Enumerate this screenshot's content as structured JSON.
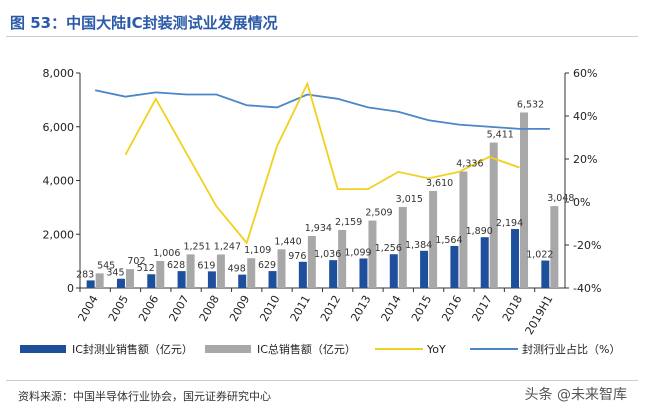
{
  "header": {
    "title": "图 53：中国大陆IC封装测试业发展情况"
  },
  "footer": {
    "source": "资料来源：中国半导体行业协会，国元证券研究中心",
    "watermark": "头条 @未来智库"
  },
  "colors": {
    "sales_bar": "#1e4f9c",
    "total_bar": "#a8a8a8",
    "yoy_line": "#f2d01c",
    "share_line": "#4a86c8"
  },
  "chart_data": {
    "type": "bar",
    "categories": [
      "2004",
      "2005",
      "2006",
      "2007",
      "2008",
      "2009",
      "2010",
      "2011",
      "2012",
      "2013",
      "2014",
      "2015",
      "2016",
      "2017",
      "2018",
      "2019H1"
    ],
    "series": [
      {
        "name": "IC封测业销售额（亿元）",
        "type": "bar",
        "axis": "left",
        "values": [
          283,
          345,
          512,
          628,
          619,
          498,
          629,
          976,
          1036,
          1099,
          1256,
          1384,
          1564,
          1890,
          2194,
          1022
        ]
      },
      {
        "name": "IC总销售额（亿元）",
        "type": "bar",
        "axis": "left",
        "values": [
          545,
          702,
          1006,
          1251,
          1247,
          1109,
          1440,
          1934,
          2159,
          2509,
          3015,
          3610,
          4336,
          5411,
          6532,
          3048
        ]
      },
      {
        "name": "YoY",
        "type": "line",
        "axis": "right",
        "values": [
          null,
          22,
          48,
          null,
          -2,
          -19,
          26,
          55,
          6,
          6,
          14,
          11,
          14,
          21,
          16,
          null
        ]
      },
      {
        "name": "封测行业占比（%）",
        "type": "line",
        "axis": "right",
        "values": [
          52,
          49,
          51,
          50,
          50,
          45,
          44,
          50,
          48,
          44,
          42,
          38,
          36,
          35,
          34,
          34
        ]
      }
    ],
    "left_axis": {
      "min": 0,
      "max": 8000,
      "ticks": [
        "0",
        "2,000",
        "4,000",
        "6,000",
        "8,000"
      ]
    },
    "right_axis": {
      "min": -40,
      "max": 60,
      "ticks": [
        "-40%",
        "-20%",
        "0%",
        "20%",
        "40%",
        "60%"
      ]
    },
    "legend": "bottom",
    "grid": false
  }
}
